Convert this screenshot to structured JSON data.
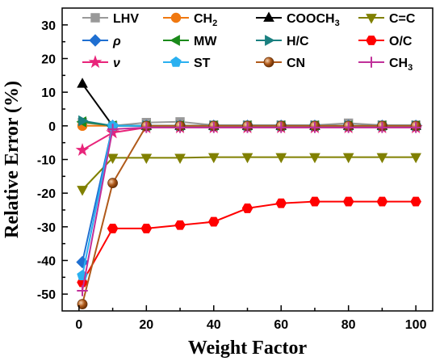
{
  "chart_data": {
    "type": "line",
    "xlabel": "Weight Factor",
    "ylabel": "Relative Error (%)",
    "xlim": [
      -5,
      105
    ],
    "ylim": [
      -55,
      35
    ],
    "xticks": [
      0,
      20,
      40,
      60,
      80,
      100
    ],
    "yticks": [
      -50,
      -40,
      -30,
      -20,
      -10,
      0,
      10,
      20,
      30
    ],
    "grid": false,
    "legend": "top-inside, 4 columns",
    "x": [
      1,
      10,
      20,
      30,
      40,
      50,
      60,
      70,
      80,
      90,
      100
    ],
    "series": [
      {
        "name": "LHV",
        "sub": "",
        "color": "#999999",
        "marker": "square",
        "values": [
          1.0,
          0.0,
          1.0,
          1.2,
          0.2,
          0.2,
          0.2,
          0.2,
          0.8,
          0.2,
          0.2
        ]
      },
      {
        "name": "CH",
        "sub": "2",
        "color": "#f07810",
        "marker": "circle",
        "values": [
          0.0,
          0.0,
          0.0,
          0.0,
          0.0,
          0.0,
          0.0,
          0.0,
          0.0,
          0.0,
          0.0
        ]
      },
      {
        "name": "COOCH",
        "sub": "3",
        "color": "#000000",
        "marker": "triangle-up",
        "values": [
          12.5,
          0.0,
          0.0,
          0.0,
          0.0,
          0.0,
          0.0,
          0.0,
          0.0,
          0.0,
          0.0
        ]
      },
      {
        "name": "C=C",
        "sub": "",
        "color": "#808000",
        "marker": "triangle-down",
        "values": [
          -19.0,
          -9.5,
          -9.5,
          -9.5,
          -9.3,
          -9.3,
          -9.3,
          -9.3,
          -9.3,
          -9.3,
          -9.3
        ]
      },
      {
        "name": "ρ",
        "sub": "",
        "color": "#1f6fd1",
        "marker": "diamond",
        "italic": true,
        "values": [
          -40.5,
          0.0,
          0.0,
          0.0,
          0.0,
          0.0,
          0.0,
          0.0,
          0.0,
          0.0,
          0.0
        ]
      },
      {
        "name": "MW",
        "sub": "",
        "color": "#1a8a1a",
        "marker": "triangle-left",
        "values": [
          1.2,
          0.0,
          0.0,
          0.0,
          0.0,
          0.0,
          0.0,
          0.0,
          0.0,
          0.0,
          0.0
        ]
      },
      {
        "name": "H/C",
        "sub": "",
        "color": "#1a8080",
        "marker": "triangle-right",
        "values": [
          1.5,
          0.0,
          0.0,
          0.0,
          0.0,
          0.0,
          0.0,
          0.0,
          0.0,
          0.0,
          0.0
        ]
      },
      {
        "name": "O/C",
        "sub": "",
        "color": "#ff0000",
        "marker": "hexagon",
        "values": [
          -46.5,
          -30.5,
          -30.5,
          -29.5,
          -28.5,
          -24.5,
          -23.0,
          -22.5,
          -22.5,
          -22.5,
          -22.5
        ]
      },
      {
        "name": "ν",
        "sub": "",
        "color": "#e8247a",
        "marker": "star",
        "italic": true,
        "values": [
          -7.2,
          -2.0,
          -0.5,
          -0.5,
          -0.5,
          -0.5,
          -0.5,
          -0.5,
          -0.5,
          -0.5,
          -0.5
        ]
      },
      {
        "name": "ST",
        "sub": "",
        "color": "#2ab0f0",
        "marker": "pentagon",
        "values": [
          -44.5,
          0.0,
          0.0,
          0.0,
          0.0,
          0.0,
          0.0,
          0.0,
          0.0,
          0.0,
          0.0
        ]
      },
      {
        "name": "CN",
        "sub": "",
        "color": "#b05a1a",
        "marker": "sphere",
        "values": [
          -53.0,
          -17.0,
          0.0,
          0.0,
          0.0,
          0.0,
          0.0,
          0.0,
          0.0,
          0.0,
          0.0
        ]
      },
      {
        "name": "CH",
        "sub": "3",
        "color": "#c0309a",
        "marker": "plus",
        "values": [
          -49.0,
          -1.0,
          -0.5,
          -0.5,
          -0.5,
          -0.5,
          -0.5,
          -0.5,
          -0.5,
          -0.5,
          -0.5
        ]
      }
    ]
  }
}
